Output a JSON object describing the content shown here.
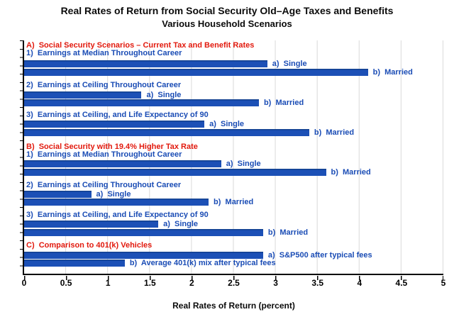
{
  "chart_data": {
    "type": "bar",
    "orientation": "horizontal",
    "title": "Real Rates of Return from Social Security Old–Age Taxes and Benefits",
    "subtitle": "Various Household Scenarios",
    "xlabel": "Real Rates of Return (percent)",
    "xlim": [
      0,
      5
    ],
    "x_ticks": [
      "0",
      "0.5",
      "1",
      "1.5",
      "2",
      "2.5",
      "3",
      "3.5",
      "4",
      "4.5",
      "5"
    ],
    "grid": "vertical gridlines every 0.5, light gray, legend none",
    "bar_color": "#1c50b6",
    "label_color": "#1a4cb5",
    "section_color": "#e2190d",
    "sections": [
      {
        "header": "A)  Social Security Scenarios – Current Tax and Benefit Rates",
        "groups": [
          {
            "label": "1)  Earnings at Median Throughout Career",
            "bars": [
              {
                "label": "a)  Single",
                "value": 2.9
              },
              {
                "label": "b)  Married",
                "value": 4.1
              }
            ]
          },
          {
            "label": "2)  Earnings at Ceiling Throughout Career",
            "bars": [
              {
                "label": "a)  Single",
                "value": 1.4
              },
              {
                "label": "b)  Married",
                "value": 2.8
              }
            ]
          },
          {
            "label": "3)  Earnings at Ceiling, and Life Expectancy of 90",
            "bars": [
              {
                "label": "a)  Single",
                "value": 2.15
              },
              {
                "label": "b)  Married",
                "value": 3.4
              }
            ]
          }
        ]
      },
      {
        "header": "B)  Social Security with 19.4% Higher Tax Rate",
        "groups": [
          {
            "label": "1)  Earnings at Median Throughout Career",
            "bars": [
              {
                "label": "a)  Single",
                "value": 2.35
              },
              {
                "label": "b)  Married",
                "value": 3.6
              }
            ]
          },
          {
            "label": "2)  Earnings at Ceiling Throughout Career",
            "bars": [
              {
                "label": "a)  Single",
                "value": 0.8
              },
              {
                "label": "b)  Married",
                "value": 2.2
              }
            ]
          },
          {
            "label": "3)  Earnings at Ceiling, and Life Expectancy of 90",
            "bars": [
              {
                "label": "a)  Single",
                "value": 1.6
              },
              {
                "label": "b)  Married",
                "value": 2.85
              }
            ]
          }
        ]
      },
      {
        "header": "C)  Comparison to 401(k) Vehicles",
        "groups": [
          {
            "label": "",
            "bars": [
              {
                "label": "a)  S&P500 after typical fees",
                "value": 2.85
              },
              {
                "label": "b)  Average 401(k) mix after typical fees",
                "value": 1.2
              }
            ]
          }
        ]
      }
    ]
  }
}
